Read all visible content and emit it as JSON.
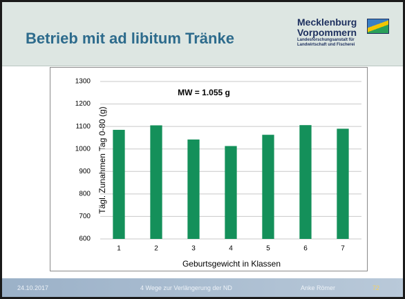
{
  "header": {
    "title": "Betrieb mit ad libitum Tränke",
    "logo": {
      "line1": "Mecklenburg",
      "line2": "Vorpommern",
      "line3": "Landesforschungsanstalt für",
      "line4": "Landwirtschaft und Fischerei"
    }
  },
  "footer": {
    "date": "24.10.2017",
    "topic": "4 Wege zur Verlängerung der ND",
    "author": "Anke Römer",
    "page": "72"
  },
  "chart_data": {
    "type": "bar",
    "annotation": "MW = 1.055 g",
    "xlabel": "Geburtsgewicht in Klassen",
    "ylabel": "Tägl. Zunahmen Tag 0-80 (g)",
    "categories": [
      "1",
      "2",
      "3",
      "4",
      "5",
      "6",
      "7"
    ],
    "values": [
      1085,
      1105,
      1042,
      1013,
      1063,
      1106,
      1090
    ],
    "color": "#14905a",
    "ylim": [
      600,
      1300
    ],
    "yticks": [
      600,
      700,
      800,
      900,
      1000,
      1100,
      1200,
      1300
    ],
    "grid": true
  }
}
